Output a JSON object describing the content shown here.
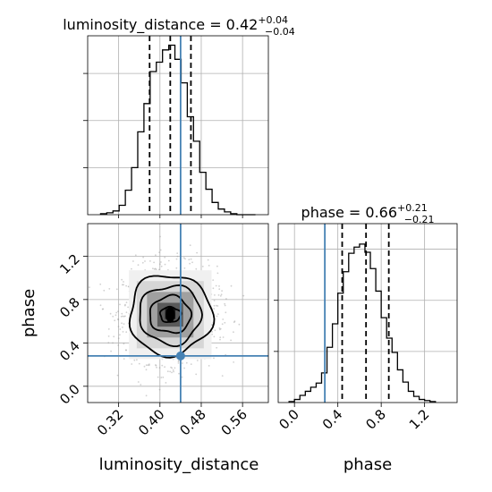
{
  "chart_data": [
    {
      "type": "histogram",
      "parameter": "luminosity_distance",
      "title": {
        "prefix": "luminosity_distance = 0.42",
        "sup": "+0.04",
        "sub": "−0.04"
      },
      "bins": [
        0.285,
        0.297,
        0.309,
        0.321,
        0.333,
        0.345,
        0.357,
        0.369,
        0.381,
        0.393,
        0.405,
        0.417,
        0.429,
        0.441,
        0.453,
        0.465,
        0.477,
        0.489,
        0.501,
        0.513,
        0.525,
        0.537,
        0.549,
        0.561,
        0.573,
        0.585
      ],
      "counts": [
        1,
        2,
        4,
        10,
        26,
        50,
        88,
        118,
        152,
        162,
        175,
        180,
        165,
        140,
        104,
        78,
        45,
        27,
        13,
        6,
        3,
        1,
        0,
        0,
        0
      ],
      "quantiles": [
        0.38,
        0.42,
        0.46
      ],
      "truth": 0.44,
      "xlim": [
        0.26,
        0.61
      ],
      "ylim": [
        0,
        190
      ],
      "ytick_values": [
        50,
        100,
        150
      ],
      "grid": true
    },
    {
      "type": "scatter",
      "x_param": "luminosity_distance",
      "y_param": "phase",
      "xlim": [
        0.26,
        0.61
      ],
      "ylim": [
        -0.15,
        1.5
      ],
      "xticks": [
        {
          "v": 0.32,
          "label": "0.32"
        },
        {
          "v": 0.4,
          "label": "0.40"
        },
        {
          "v": 0.48,
          "label": "0.48"
        },
        {
          "v": 0.56,
          "label": "0.56"
        }
      ],
      "yticks": [
        {
          "v": 0.0,
          "label": "0.0"
        },
        {
          "v": 0.4,
          "label": "0.4"
        },
        {
          "v": 0.8,
          "label": "0.8"
        },
        {
          "v": 1.2,
          "label": "1.2"
        }
      ],
      "xlabel": "luminosity_distance",
      "ylabel": "phase",
      "center": [
        0.42,
        0.66
      ],
      "spread": [
        0.045,
        0.22
      ],
      "contours": [
        {
          "rx": 0.02,
          "ry": 0.07
        },
        {
          "rx": 0.04,
          "ry": 0.17
        },
        {
          "rx": 0.06,
          "ry": 0.27
        },
        {
          "rx": 0.08,
          "ry": 0.37
        }
      ],
      "density_cells": [
        {
          "x": 0.41,
          "y": 0.62,
          "w": 0.02,
          "h": 0.1,
          "shade": "#1a1a1a"
        },
        {
          "x": 0.395,
          "y": 0.55,
          "w": 0.05,
          "h": 0.22,
          "shade": "#5a5a5a"
        },
        {
          "x": 0.375,
          "y": 0.45,
          "w": 0.09,
          "h": 0.42,
          "shade": "#a0a0a0"
        },
        {
          "x": 0.355,
          "y": 0.35,
          "w": 0.13,
          "h": 0.62,
          "shade": "#d6d6d6"
        },
        {
          "x": 0.34,
          "y": 0.25,
          "w": 0.16,
          "h": 0.82,
          "shade": "#f0f0f0"
        }
      ],
      "truth": [
        0.44,
        0.28
      ],
      "grid": true
    },
    {
      "type": "histogram",
      "parameter": "phase",
      "title": {
        "prefix": "phase = 0.66",
        "sup": "+0.21",
        "sub": "−0.21"
      },
      "bins": [
        -0.05,
        0.0,
        0.05,
        0.1,
        0.15,
        0.2,
        0.25,
        0.3,
        0.35,
        0.4,
        0.45,
        0.5,
        0.55,
        0.6,
        0.65,
        0.7,
        0.75,
        0.8,
        0.85,
        0.9,
        0.95,
        1.0,
        1.05,
        1.1,
        1.15,
        1.2,
        1.25,
        1.3
      ],
      "counts": [
        1,
        3,
        7,
        11,
        15,
        19,
        29,
        54,
        77,
        107,
        128,
        146,
        152,
        155,
        147,
        131,
        109,
        83,
        63,
        49,
        32,
        20,
        11,
        6,
        3,
        2,
        1
      ],
      "quantiles": [
        0.44,
        0.66,
        0.87
      ],
      "truth": 0.28,
      "xlim": [
        -0.15,
        1.5
      ],
      "ylim": [
        0,
        175
      ],
      "xticks": [
        {
          "v": 0.0,
          "label": "0.0"
        },
        {
          "v": 0.4,
          "label": "0.4"
        },
        {
          "v": 0.8,
          "label": "0.8"
        },
        {
          "v": 1.2,
          "label": "1.2"
        }
      ],
      "ytick_values": [
        50,
        100,
        150
      ],
      "xlabel": "phase",
      "grid": true
    }
  ],
  "colors": {
    "truth": "#4682b4",
    "hist": "#000000",
    "grid": "#b0b0b0",
    "points": "#9a9a9a"
  }
}
